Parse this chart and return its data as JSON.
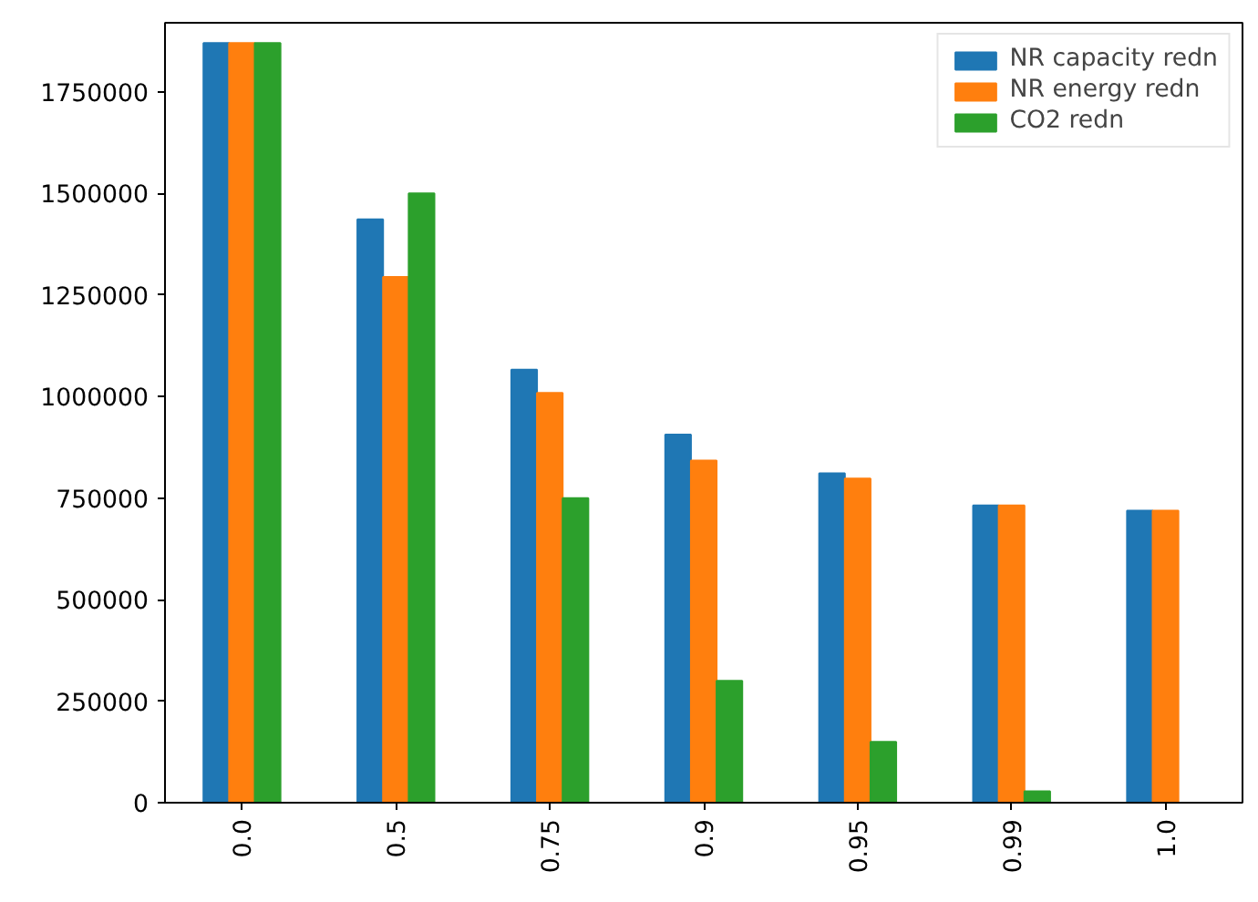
{
  "chart_data": {
    "type": "bar",
    "categories": [
      "0.0",
      "0.5",
      "0.75",
      "0.9",
      "0.95",
      "0.99",
      "1.0"
    ],
    "series": [
      {
        "name": "NR capacity redn",
        "color": "#1f77b4",
        "values": [
          1870000,
          1436000,
          1066000,
          906000,
          811000,
          732000,
          719000
        ]
      },
      {
        "name": "NR energy redn",
        "color": "#ff7f0e",
        "values": [
          1870000,
          1294000,
          1009000,
          842000,
          798000,
          732000,
          719000
        ]
      },
      {
        "name": "CO2 redn",
        "color": "#2ca02c",
        "values": [
          1870000,
          1500000,
          750000,
          300000,
          150000,
          28000,
          0
        ]
      }
    ],
    "ylim": [
      0,
      1920000
    ],
    "yticks": [
      0,
      250000,
      500000,
      750000,
      1000000,
      1250000,
      1500000,
      1750000
    ],
    "grid": false,
    "legend": "top right"
  }
}
